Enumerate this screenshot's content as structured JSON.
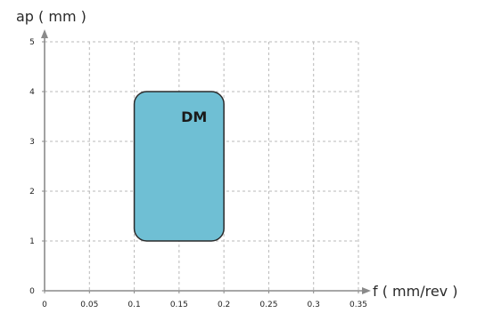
{
  "chart_data": {
    "type": "area",
    "xlabel": "f ( mm/rev )",
    "ylabel": "ap ( mm )",
    "xlim": [
      0,
      0.35
    ],
    "ylim": [
      0,
      5
    ],
    "x_ticks": [
      "0",
      "0.05",
      "0.1",
      "0.15",
      "0.2",
      "0.25",
      "0.3",
      "0.35"
    ],
    "y_ticks": [
      "0",
      "1",
      "2",
      "3",
      "4",
      "5"
    ],
    "grid": true,
    "regions": [
      {
        "label": "DM",
        "f_range": [
          0.1,
          0.2
        ],
        "ap_range": [
          1,
          4
        ],
        "color": "#6fbfd4",
        "outline": "#2b2b2b"
      }
    ]
  }
}
